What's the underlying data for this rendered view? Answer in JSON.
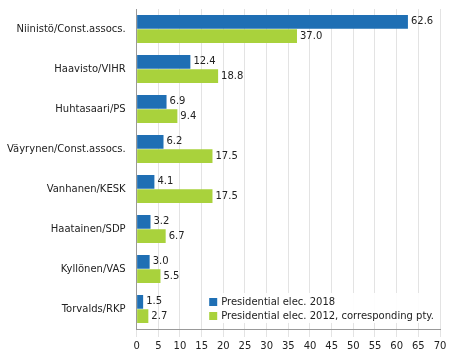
{
  "chart_data": {
    "type": "bar",
    "orientation": "horizontal",
    "categories": [
      "Niinistö/Const.assocs.",
      "Haavisto/VIHR",
      "Huhtasaari/PS",
      "Väyrynen/Const.assocs.",
      "Vanhanen/KESK",
      "Haatainen/SDP",
      "Kyllönen/VAS",
      "Torvalds/RKP"
    ],
    "series": [
      {
        "name": "Presidential elec. 2018",
        "color": "#1f6fb4",
        "values": [
          62.6,
          12.4,
          6.9,
          6.2,
          4.1,
          3.2,
          3.0,
          1.5
        ],
        "value_labels": [
          "62.6",
          "12.4",
          "6.9",
          "6.2",
          "4.1",
          "3.2",
          "3.0",
          "1.5"
        ]
      },
      {
        "name": "Presidential elec. 2012, corresponding pty.",
        "color": "#a9d23c",
        "values": [
          37.0,
          18.8,
          9.4,
          17.5,
          17.5,
          6.7,
          5.5,
          2.7
        ],
        "value_labels": [
          "37.0",
          "18.8",
          "9.4",
          "17.5",
          "17.5",
          "6.7",
          "5.5",
          "2.7"
        ]
      }
    ],
    "xlim": [
      0,
      70
    ],
    "xticks": [
      0,
      5,
      10,
      15,
      20,
      25,
      30,
      35,
      40,
      45,
      50,
      55,
      60,
      65,
      70
    ],
    "grid": true,
    "legend": "lower right",
    "data_labels": true
  }
}
